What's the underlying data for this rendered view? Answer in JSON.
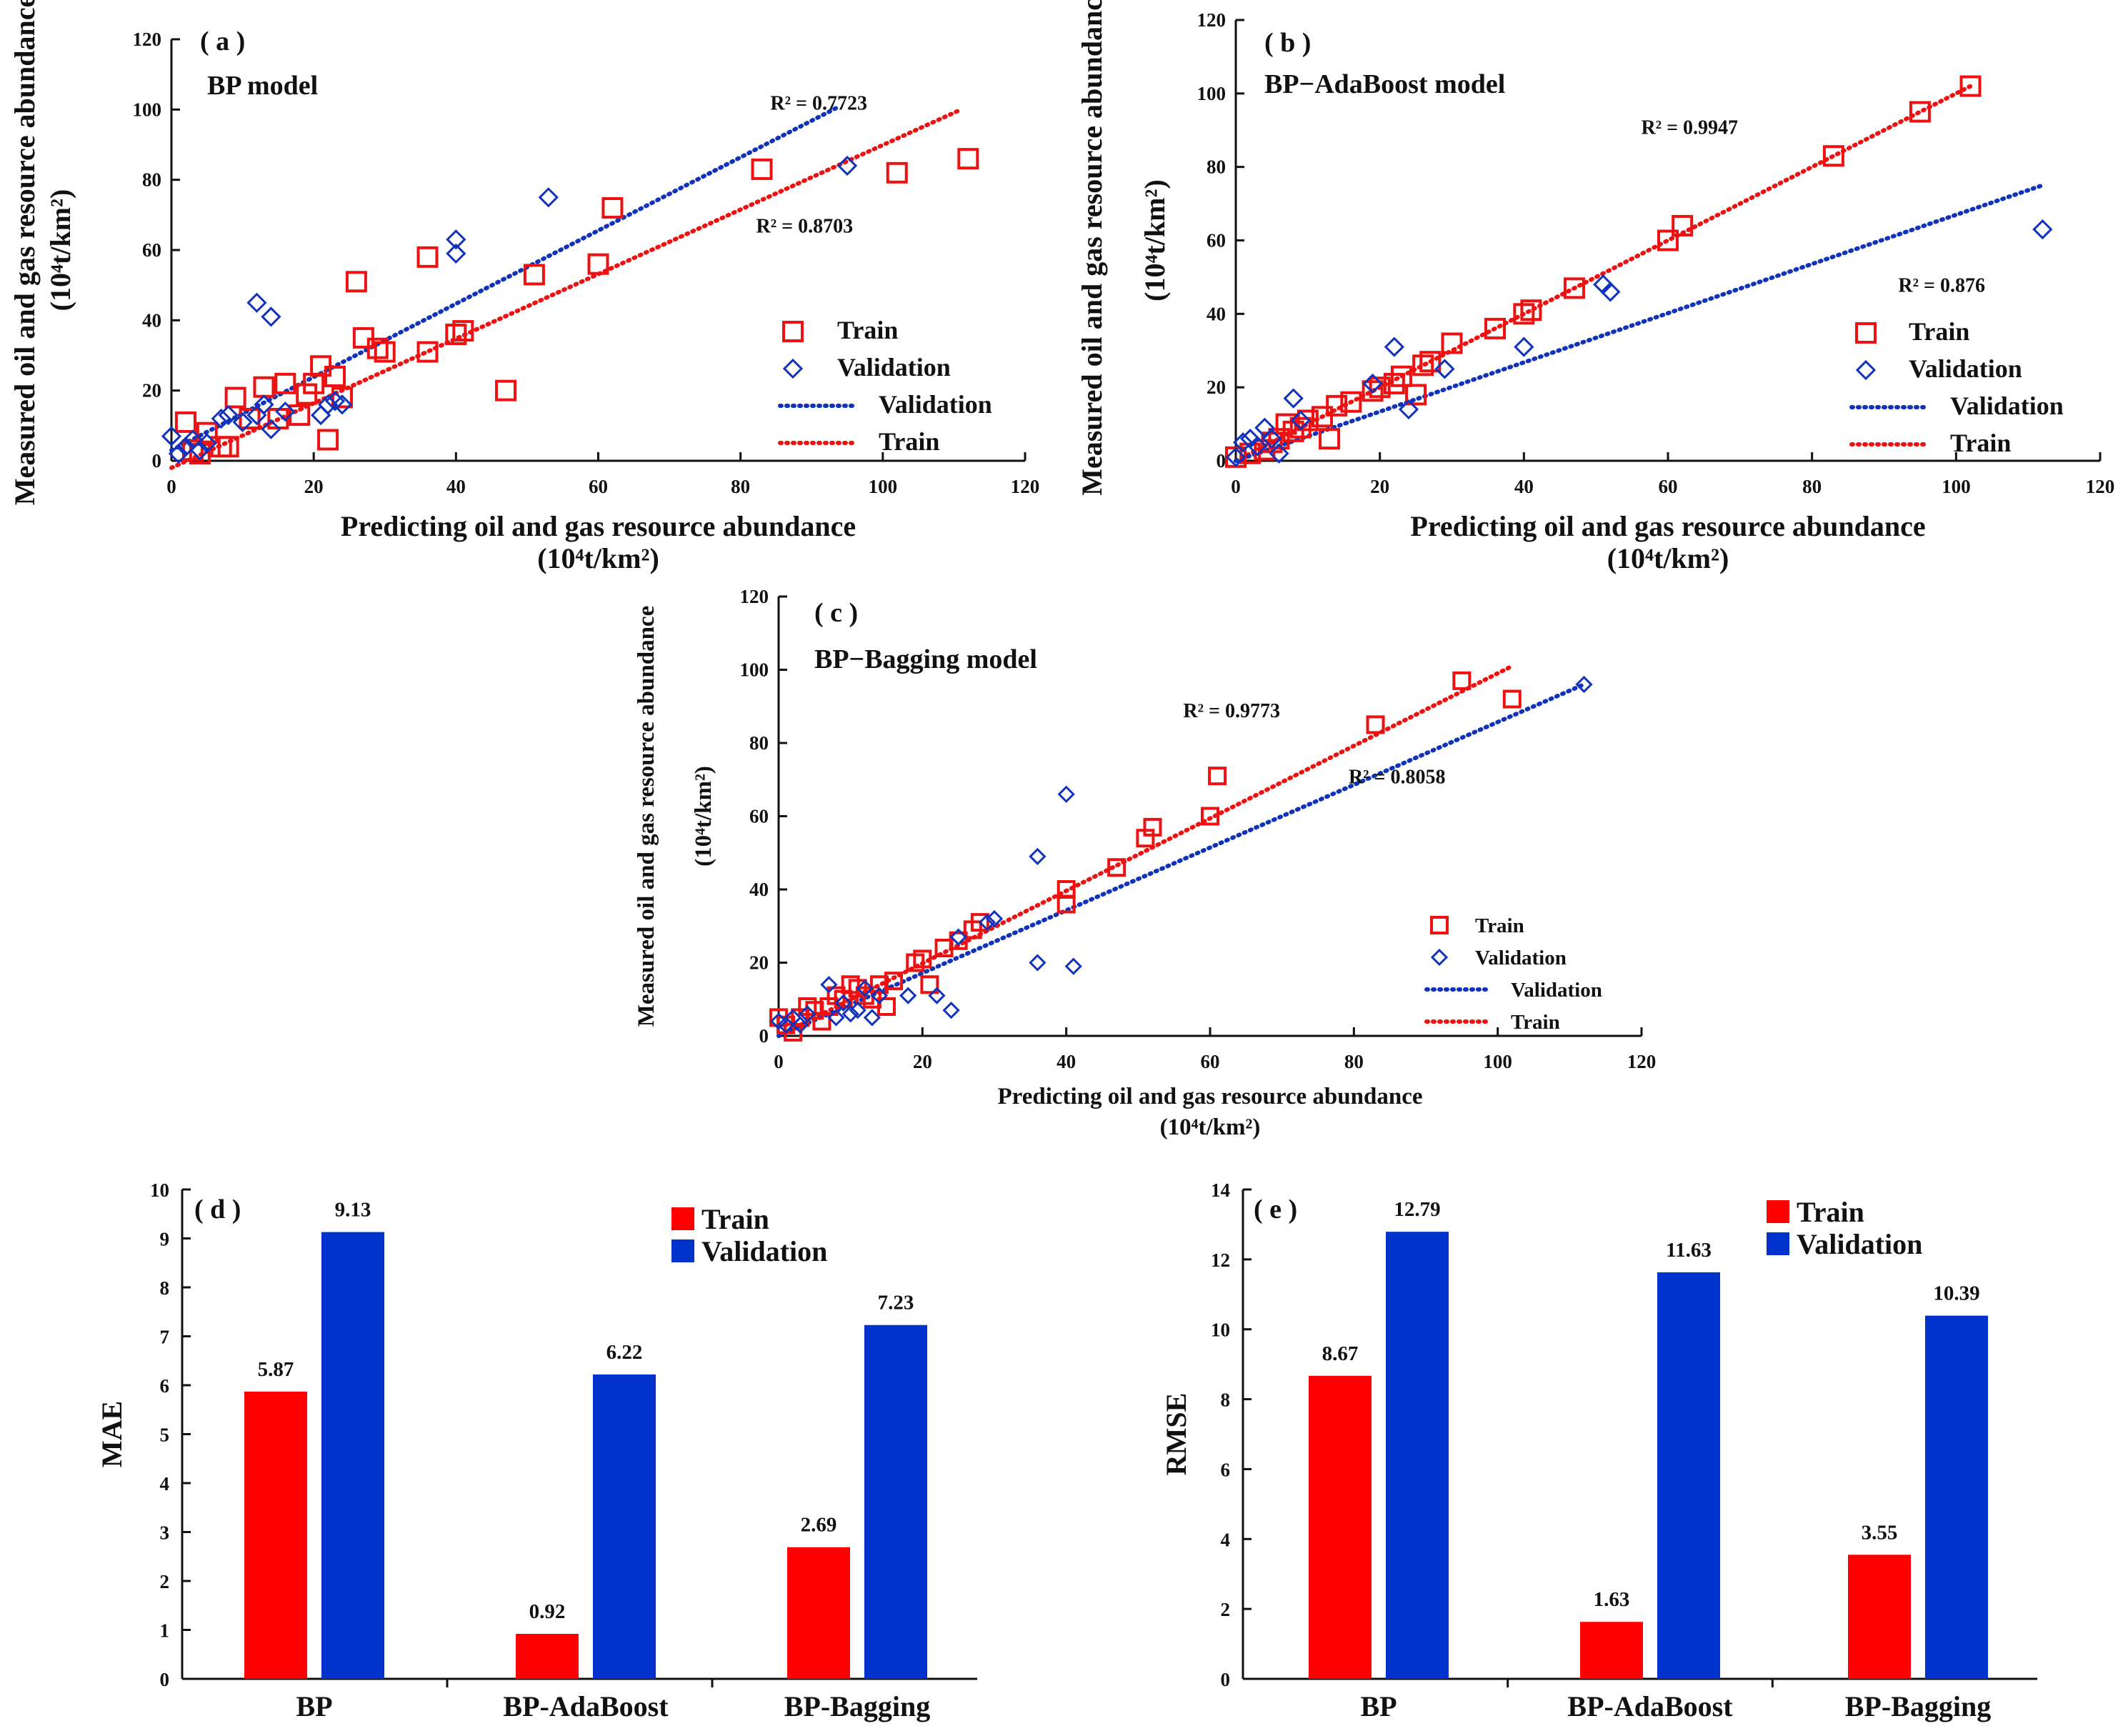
{
  "colors": {
    "train": "#ee1111",
    "validation": "#1133bb",
    "train_bar": "#ff0000",
    "validation_bar": "#0033cc",
    "axis": "#111111"
  },
  "chart_data": [
    {
      "id": "a",
      "type": "scatter",
      "panel_label": "( a )",
      "title": "BP model",
      "xlabel": "Predicting oil and gas resource abundance",
      "xlabel_unit": "(10⁴t/km²)",
      "ylabel": "Measured oil and gas resource abundance",
      "ylabel_unit": "(10⁴t/km²)",
      "xlim": [
        0,
        120
      ],
      "ylim": [
        0,
        120
      ],
      "xticks": [
        0,
        20,
        40,
        60,
        80,
        100,
        120
      ],
      "yticks": [
        0,
        20,
        40,
        60,
        80,
        100,
        120
      ],
      "r2_labels": [
        {
          "series": "validation",
          "text": "R² = 0.7723",
          "at": [
            91,
            100
          ]
        },
        {
          "series": "train",
          "text": "R² = 0.8703",
          "at": [
            89,
            65
          ]
        }
      ],
      "series": [
        {
          "name": "Train",
          "key": "train",
          "marker": "square",
          "points": [
            [
              2,
              11
            ],
            [
              3,
              3
            ],
            [
              4,
              2
            ],
            [
              5,
              8
            ],
            [
              7,
              4
            ],
            [
              8,
              4
            ],
            [
              9,
              18
            ],
            [
              11,
              12
            ],
            [
              13,
              21
            ],
            [
              15,
              12
            ],
            [
              16,
              22
            ],
            [
              18,
              13
            ],
            [
              19,
              19
            ],
            [
              20,
              22
            ],
            [
              21,
              27
            ],
            [
              22,
              6
            ],
            [
              23,
              24
            ],
            [
              24,
              18
            ],
            [
              26,
              51
            ],
            [
              27,
              35
            ],
            [
              29,
              32
            ],
            [
              30,
              31
            ],
            [
              36,
              31
            ],
            [
              36,
              58
            ],
            [
              40,
              36
            ],
            [
              41,
              37
            ],
            [
              47,
              20
            ],
            [
              51,
              53
            ],
            [
              60,
              56
            ],
            [
              62,
              72
            ],
            [
              83,
              83
            ],
            [
              102,
              82
            ],
            [
              112,
              86
            ]
          ],
          "fit": [
            [
              0,
              -2
            ],
            [
              111,
              100
            ]
          ],
          "fit_label": "Train"
        },
        {
          "name": "Validation",
          "key": "validation",
          "marker": "diamond",
          "points": [
            [
              0,
              7
            ],
            [
              1,
              2
            ],
            [
              2,
              4
            ],
            [
              3,
              6
            ],
            [
              4,
              3
            ],
            [
              5,
              5
            ],
            [
              7,
              12
            ],
            [
              8,
              13
            ],
            [
              10,
              11
            ],
            [
              12,
              13
            ],
            [
              12,
              45
            ],
            [
              13,
              16
            ],
            [
              14,
              9
            ],
            [
              14,
              41
            ],
            [
              16,
              14
            ],
            [
              21,
              13
            ],
            [
              22,
              16
            ],
            [
              23,
              17
            ],
            [
              24,
              16
            ],
            [
              40,
              59
            ],
            [
              40,
              63
            ],
            [
              53,
              75
            ],
            [
              95,
              84
            ]
          ],
          "fit": [
            [
              0,
              3
            ],
            [
              94,
              101
            ]
          ],
          "fit_label": "Validation"
        }
      ],
      "legend": [
        "Train",
        "Validation",
        "Validation",
        "Train"
      ]
    },
    {
      "id": "b",
      "type": "scatter",
      "panel_label": "( b )",
      "title": "BP−AdaBoost  model",
      "xlabel": "Predicting oil and gas resource abundance",
      "xlabel_unit": "(10⁴t/km²)",
      "ylabel": "Measured oil and gas resource abundance",
      "ylabel_unit": "(10⁴t/km²)",
      "xlim": [
        0,
        120
      ],
      "ylim": [
        0,
        120
      ],
      "xticks": [
        0,
        20,
        40,
        60,
        80,
        100,
        120
      ],
      "yticks": [
        0,
        20,
        40,
        60,
        80,
        100,
        120
      ],
      "r2_labels": [
        {
          "series": "train",
          "text": "R² = 0.9947",
          "at": [
            63,
            89
          ]
        },
        {
          "series": "validation",
          "text": "R² = 0.876",
          "at": [
            98,
            46
          ]
        }
      ],
      "series": [
        {
          "name": "Train",
          "key": "train",
          "marker": "square",
          "points": [
            [
              0,
              1
            ],
            [
              2,
              2
            ],
            [
              4,
              3
            ],
            [
              5,
              5
            ],
            [
              6,
              6
            ],
            [
              7,
              10
            ],
            [
              8,
              8
            ],
            [
              9,
              9
            ],
            [
              10,
              11
            ],
            [
              12,
              12
            ],
            [
              13,
              6
            ],
            [
              14,
              15
            ],
            [
              16,
              16
            ],
            [
              19,
              19
            ],
            [
              20,
              20
            ],
            [
              22,
              21
            ],
            [
              23,
              23
            ],
            [
              25,
              18
            ],
            [
              26,
              26
            ],
            [
              27,
              27
            ],
            [
              30,
              32
            ],
            [
              36,
              36
            ],
            [
              40,
              40
            ],
            [
              41,
              41
            ],
            [
              47,
              47
            ],
            [
              60,
              60
            ],
            [
              62,
              64
            ],
            [
              83,
              83
            ],
            [
              95,
              95
            ],
            [
              102,
              102
            ]
          ],
          "fit": [
            [
              0,
              0
            ],
            [
              102,
              102
            ]
          ],
          "fit_label": "Train"
        },
        {
          "name": "Validation",
          "key": "validation",
          "marker": "diamond",
          "points": [
            [
              0,
              1
            ],
            [
              1,
              5
            ],
            [
              2,
              6
            ],
            [
              3,
              4
            ],
            [
              4,
              9
            ],
            [
              5,
              6
            ],
            [
              6,
              2
            ],
            [
              8,
              17
            ],
            [
              9,
              11
            ],
            [
              19,
              21
            ],
            [
              22,
              31
            ],
            [
              24,
              14
            ],
            [
              29,
              25
            ],
            [
              40,
              31
            ],
            [
              51,
              48
            ],
            [
              52,
              46
            ],
            [
              112,
              63
            ]
          ],
          "fit": [
            [
              0,
              0
            ],
            [
              112,
              75
            ]
          ],
          "fit_label": "Validation"
        }
      ],
      "legend": [
        "Train",
        "Validation",
        "Validation",
        "Train"
      ]
    },
    {
      "id": "c",
      "type": "scatter",
      "panel_label": "( c )",
      "title": "BP−Bagging model",
      "xlabel": "Predicting oil and gas resource abundance",
      "xlabel_unit": "(10⁴t/km²)",
      "ylabel": "Measured oil and gas resource abundance",
      "ylabel_unit": "(10⁴t/km²)",
      "xlim": [
        0,
        120
      ],
      "ylim": [
        0,
        120
      ],
      "xticks": [
        0,
        20,
        40,
        60,
        80,
        100,
        120
      ],
      "yticks": [
        0,
        20,
        40,
        60,
        80,
        100,
        120
      ],
      "r2_labels": [
        {
          "series": "train",
          "text": "R² = 0.9773",
          "at": [
            63,
            87
          ]
        },
        {
          "series": "validation",
          "text": "R² = 0.8058",
          "at": [
            86,
            69
          ]
        }
      ],
      "series": [
        {
          "name": "Train",
          "key": "train",
          "marker": "square",
          "points": [
            [
              0,
              5
            ],
            [
              1,
              3
            ],
            [
              2,
              1
            ],
            [
              3,
              5
            ],
            [
              4,
              8
            ],
            [
              5,
              7
            ],
            [
              6,
              4
            ],
            [
              7,
              8
            ],
            [
              8,
              11
            ],
            [
              9,
              10
            ],
            [
              10,
              14
            ],
            [
              11,
              13
            ],
            [
              12,
              11
            ],
            [
              13,
              10
            ],
            [
              14,
              14
            ],
            [
              15,
              8
            ],
            [
              16,
              15
            ],
            [
              19,
              20
            ],
            [
              20,
              21
            ],
            [
              21,
              14
            ],
            [
              23,
              24
            ],
            [
              25,
              26
            ],
            [
              27,
              29
            ],
            [
              28,
              31
            ],
            [
              40,
              36
            ],
            [
              40,
              40
            ],
            [
              47,
              46
            ],
            [
              51,
              54
            ],
            [
              52,
              57
            ],
            [
              60,
              60
            ],
            [
              61,
              71
            ],
            [
              83,
              85
            ],
            [
              95,
              97
            ],
            [
              102,
              92
            ]
          ],
          "fit": [
            [
              0,
              0
            ],
            [
              102,
              101
            ]
          ],
          "fit_label": "Train"
        },
        {
          "name": "Validation",
          "key": "validation",
          "marker": "diamond",
          "points": [
            [
              0,
              4
            ],
            [
              1,
              3
            ],
            [
              2,
              5
            ],
            [
              3,
              3
            ],
            [
              4,
              6
            ],
            [
              7,
              14
            ],
            [
              8,
              5
            ],
            [
              9,
              9
            ],
            [
              10,
              6
            ],
            [
              11,
              7
            ],
            [
              12,
              13
            ],
            [
              13,
              5
            ],
            [
              14,
              11
            ],
            [
              18,
              11
            ],
            [
              22,
              11
            ],
            [
              24,
              7
            ],
            [
              25,
              27
            ],
            [
              29,
              31
            ],
            [
              30,
              32
            ],
            [
              36,
              20
            ],
            [
              36,
              49
            ],
            [
              40,
              66
            ],
            [
              41,
              19
            ],
            [
              112,
              96
            ]
          ],
          "fit": [
            [
              0,
              0
            ],
            [
              112,
              96
            ]
          ],
          "fit_label": "Validation"
        }
      ],
      "legend": [
        "Train",
        "Validation",
        "Validation",
        "Train"
      ]
    },
    {
      "id": "d",
      "type": "bar",
      "panel_label": "( d )",
      "ylabel": "MAE",
      "ylim": [
        0,
        10
      ],
      "yticks": [
        0,
        1,
        2,
        3,
        4,
        5,
        6,
        7,
        8,
        9,
        10
      ],
      "categories": [
        "BP",
        "BP-AdaBoost",
        "BP-Bagging"
      ],
      "series": [
        {
          "name": "Train",
          "key": "train",
          "values": [
            5.87,
            0.92,
            2.69
          ],
          "labels": [
            "5.87",
            "0.92",
            "2.69"
          ]
        },
        {
          "name": "Validation",
          "key": "validation",
          "values": [
            9.13,
            6.22,
            7.23
          ],
          "labels": [
            "9.13",
            "6.22",
            "7.23"
          ]
        }
      ],
      "legend": [
        "Train",
        "Validation"
      ]
    },
    {
      "id": "e",
      "type": "bar",
      "panel_label": "( e )",
      "ylabel": "RMSE",
      "ylim": [
        0,
        14
      ],
      "yticks": [
        0,
        2,
        4,
        6,
        8,
        10,
        12,
        14
      ],
      "categories": [
        "BP",
        "BP-AdaBoost",
        "BP-Bagging"
      ],
      "series": [
        {
          "name": "Train",
          "key": "train",
          "values": [
            8.67,
            1.63,
            3.55
          ],
          "labels": [
            "8.67",
            "1.63",
            "3.55"
          ]
        },
        {
          "name": "Validation",
          "key": "validation",
          "values": [
            12.79,
            11.63,
            10.39
          ],
          "labels": [
            "12.79",
            "11.63",
            "10.39"
          ]
        }
      ],
      "legend": [
        "Train",
        "Validation"
      ]
    }
  ]
}
